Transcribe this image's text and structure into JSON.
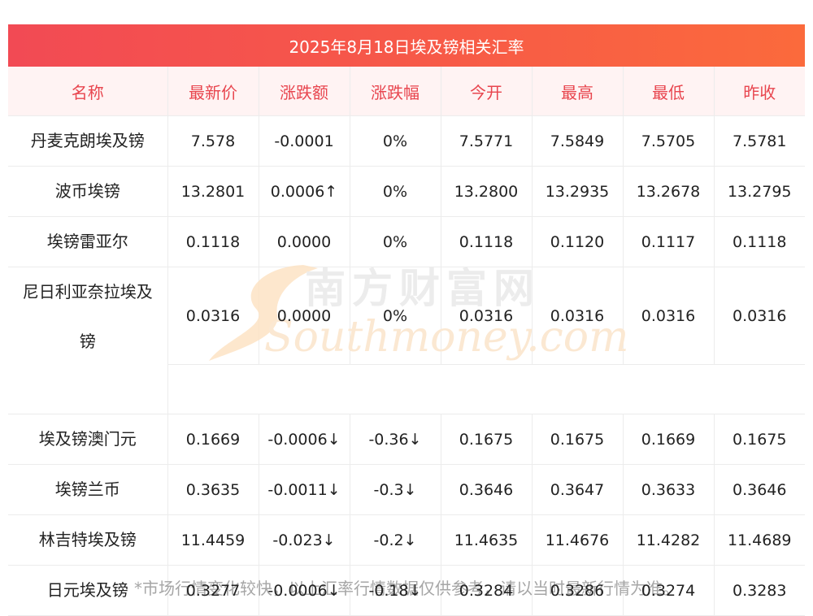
{
  "title": "2025年8月18日埃及镑相关汇率",
  "headers": [
    "名称",
    "最新价",
    "涨跌额",
    "涨跌幅",
    "今开",
    "最高",
    "最低",
    "昨收"
  ],
  "rows": [
    {
      "name": "丹麦克朗埃及镑",
      "latest": "7.578",
      "change": "-0.0001",
      "pct": "0%",
      "open": "7.5771",
      "high": "7.5849",
      "low": "7.5705",
      "prev": "7.5781"
    },
    {
      "name": "波币埃镑",
      "latest": "13.2801",
      "change": "0.0006↑",
      "pct": "0%",
      "open": "13.2800",
      "high": "13.2935",
      "low": "13.2678",
      "prev": "13.2795"
    },
    {
      "name": "埃镑雷亚尔",
      "latest": "0.1118",
      "change": "0.0000",
      "pct": "0%",
      "open": "0.1118",
      "high": "0.1120",
      "low": "0.1117",
      "prev": "0.1118"
    },
    {
      "name_line1": "尼日利亚奈拉埃及",
      "name_line2": "镑",
      "latest": "0.0316",
      "change": "0.0000",
      "pct": "0%",
      "open": "0.0316",
      "high": "0.0316",
      "low": "0.0316",
      "prev": "0.0316"
    },
    {
      "name": "埃及镑澳门元",
      "latest": "0.1669",
      "change": "-0.0006↓",
      "pct": "-0.36↓",
      "open": "0.1675",
      "high": "0.1675",
      "low": "0.1669",
      "prev": "0.1675"
    },
    {
      "name": "埃镑兰币",
      "latest": "0.3635",
      "change": "-0.0011↓",
      "pct": "-0.3↓",
      "open": "0.3646",
      "high": "0.3647",
      "low": "0.3633",
      "prev": "0.3646"
    },
    {
      "name": "林吉特埃及镑",
      "latest": "11.4459",
      "change": "-0.023↓",
      "pct": "-0.2↓",
      "open": "11.4635",
      "high": "11.4676",
      "low": "11.4282",
      "prev": "11.4689"
    },
    {
      "name": "日元埃及镑",
      "latest": "0.3277",
      "change": "-0.0006↓",
      "pct": "-0.18↓",
      "open": "0.3284",
      "high": "0.3286",
      "low": "0.3274",
      "prev": "0.3283"
    }
  ],
  "watermark": {
    "cn": "南方财富网",
    "en": "Southmoney.com"
  },
  "footnote": "*市场行情变化较快，以上汇率行情数据仅供参考，请以当时最新行情为准。",
  "colors": {
    "accent": "#f24a54",
    "up": "#e01b1b",
    "down": "#1e8a1e",
    "header_bg": "#fff3f3"
  }
}
